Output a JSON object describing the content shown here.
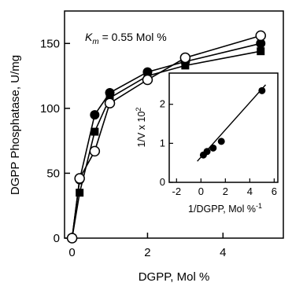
{
  "chart_data": [
    {
      "type": "line",
      "xlabel": "DGPP, Mol %",
      "ylabel": "DGPP Phosphatase, U/mg",
      "xlim": [
        -0.2,
        5.6
      ],
      "ylim": [
        0,
        175
      ],
      "xticks": [
        "0",
        "2",
        "4"
      ],
      "yticks": [
        "0",
        "50",
        "100",
        "150"
      ],
      "grid": false,
      "annotation": {
        "prefix": "K",
        "subscript": "m",
        "text": " = 0.55 Mol %"
      },
      "series": [
        {
          "marker": "open-circle",
          "x": [
            0,
            0.2,
            0.6,
            1.0,
            2.0,
            3.0,
            5.0
          ],
          "y": [
            0,
            46,
            67,
            104,
            122,
            139,
            156
          ]
        },
        {
          "marker": "filled-circle",
          "x": [
            0,
            0.2,
            0.6,
            1.0,
            2.0,
            3.0,
            5.0
          ],
          "y": [
            0,
            45,
            95,
            112,
            128,
            136,
            150
          ]
        },
        {
          "marker": "filled-square",
          "x": [
            0,
            0.2,
            0.6,
            1.0,
            2.0,
            3.0,
            5.0
          ],
          "y": [
            0,
            35,
            82,
            108,
            125,
            133,
            144
          ]
        }
      ]
    },
    {
      "type": "scatter",
      "inset": true,
      "xlabel": "1/DGPP, Mol %",
      "xlabel_sup": "-1",
      "ylabel": "1/V x 10",
      "ylabel_sup": "2",
      "xlim": [
        -2.6,
        6.3
      ],
      "ylim": [
        0,
        2.8
      ],
      "xticks": [
        "-2",
        "0",
        "2",
        "4",
        "6"
      ],
      "yticks": [
        "0",
        "1",
        "2"
      ],
      "points": {
        "x": [
          0.2,
          0.5,
          1.0,
          1.67,
          5.0
        ],
        "y": [
          0.7,
          0.79,
          0.88,
          1.05,
          2.35
        ]
      },
      "fit_line": {
        "x": [
          -0.3,
          5.3
        ],
        "y": [
          0.54,
          2.5
        ]
      }
    }
  ]
}
